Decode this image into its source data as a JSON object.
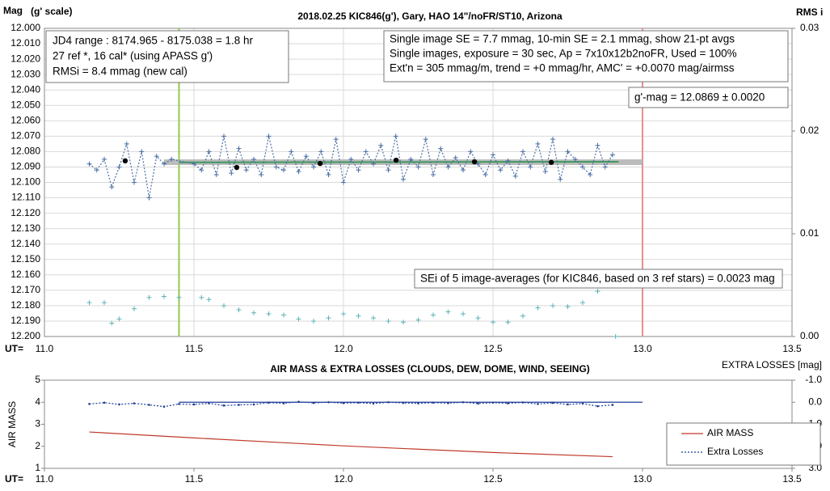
{
  "chart_data": [
    {
      "type": "scatter",
      "title": "2018.02.25  KIC846(g'),  Gary, HAO  14\"/noFR/ST10,  Arizona",
      "ylabel": "Mag",
      "ylabel_note": "(g' scale)",
      "y2label": "RMS i",
      "xlabel": "UT=",
      "xlim": [
        11.0,
        13.5
      ],
      "xticks": [
        {
          "value": 11.0,
          "label": "11.0"
        },
        {
          "value": 11.5,
          "label": "11.5"
        },
        {
          "value": 12.0,
          "label": "12.0"
        },
        {
          "value": 12.5,
          "label": "12.5"
        },
        {
          "value": 13.0,
          "label": "13.0"
        },
        {
          "value": 13.5,
          "label": "13.5"
        }
      ],
      "ylim": [
        12.2,
        12.0
      ],
      "yticks": [
        {
          "value": 12.0,
          "label": "12.000"
        },
        {
          "value": 12.01,
          "label": "12.010"
        },
        {
          "value": 12.02,
          "label": "12.020"
        },
        {
          "value": 12.03,
          "label": "12.030"
        },
        {
          "value": 12.04,
          "label": "12.040"
        },
        {
          "value": 12.05,
          "label": "12.050"
        },
        {
          "value": 12.06,
          "label": "12.060"
        },
        {
          "value": 12.07,
          "label": "12.070"
        },
        {
          "value": 12.08,
          "label": "12.080"
        },
        {
          "value": 12.09,
          "label": "12.090"
        },
        {
          "value": 12.1,
          "label": "12.100"
        },
        {
          "value": 12.11,
          "label": "12.110"
        },
        {
          "value": 12.12,
          "label": "12.120"
        },
        {
          "value": 12.13,
          "label": "12.130"
        },
        {
          "value": 12.14,
          "label": "12.140"
        },
        {
          "value": 12.15,
          "label": "12.150"
        },
        {
          "value": 12.16,
          "label": "12.160"
        },
        {
          "value": 12.17,
          "label": "12.170"
        },
        {
          "value": 12.18,
          "label": "12.180"
        },
        {
          "value": 12.19,
          "label": "12.190"
        },
        {
          "value": 12.2,
          "label": "12.200"
        }
      ],
      "y2lim": [
        0,
        0.03
      ],
      "y2ticks": [
        {
          "value": 0,
          "label": "0.00"
        },
        {
          "value": 0.01,
          "label": "0.01"
        },
        {
          "value": 0.02,
          "label": "0.02"
        },
        {
          "value": 0.03,
          "label": "0.03"
        }
      ],
      "grid": true,
      "vlines": [
        {
          "x": 11.45,
          "color": "#92c94a"
        },
        {
          "x": 13.0,
          "color": "#e89090"
        }
      ],
      "series": [
        {
          "color": "#b0b0b0",
          "line": "band",
          "x": [
            11.4,
            13.0
          ],
          "values": [
            12.0869,
            12.0869
          ]
        },
        {
          "color": "#3f9a5e",
          "line": "solid",
          "x": [
            11.45,
            12.92
          ],
          "values": [
            12.087,
            12.0866
          ]
        },
        {
          "color": "#4a6fa5",
          "marker": "+",
          "line": "dotted",
          "x": [
            11.15,
            11.175,
            11.2,
            11.225,
            11.25,
            11.275,
            11.3,
            11.325,
            11.35,
            11.375,
            11.4,
            11.425,
            11.5,
            11.525,
            11.55,
            11.575,
            11.6,
            11.625,
            11.65,
            11.675,
            11.7,
            11.725,
            11.75,
            11.775,
            11.8,
            11.825,
            11.85,
            11.875,
            11.9,
            11.925,
            11.95,
            11.975,
            12.0,
            12.025,
            12.05,
            12.075,
            12.1,
            12.125,
            12.15,
            12.175,
            12.2,
            12.225,
            12.25,
            12.275,
            12.3,
            12.325,
            12.35,
            12.375,
            12.4,
            12.425,
            12.45,
            12.475,
            12.5,
            12.525,
            12.55,
            12.575,
            12.6,
            12.625,
            12.65,
            12.675,
            12.7,
            12.725,
            12.75,
            12.775,
            12.8,
            12.825,
            12.85,
            12.875,
            12.9
          ],
          "values": [
            12.088,
            12.092,
            12.085,
            12.103,
            12.09,
            12.075,
            12.1,
            12.08,
            12.11,
            12.083,
            12.088,
            12.085,
            12.088,
            12.092,
            12.08,
            12.095,
            12.07,
            12.094,
            12.078,
            12.092,
            12.085,
            12.095,
            12.07,
            12.09,
            12.092,
            12.08,
            12.093,
            12.083,
            12.09,
            12.08,
            12.095,
            12.072,
            12.1,
            12.085,
            12.092,
            12.08,
            12.088,
            12.076,
            12.092,
            12.07,
            12.098,
            12.085,
            12.09,
            12.072,
            12.095,
            12.078,
            12.09,
            12.084,
            12.092,
            12.08,
            12.088,
            12.095,
            12.082,
            12.092,
            12.086,
            12.096,
            12.08,
            12.09,
            12.075,
            12.093,
            12.072,
            12.098,
            12.08,
            12.085,
            12.09,
            12.095,
            12.076,
            12.09,
            12.082
          ]
        },
        {
          "color": "#000000",
          "marker": "dot",
          "x": [
            11.27,
            11.643,
            11.922,
            12.176,
            12.438,
            12.695
          ],
          "values": [
            12.086,
            12.0903,
            12.0877,
            12.0856,
            12.0866,
            12.087
          ]
        },
        {
          "color": "#5fb3b3",
          "marker": "+",
          "axis": "y2",
          "x": [
            11.15,
            11.2,
            11.225,
            11.25,
            11.3,
            11.35,
            11.4,
            11.45,
            11.525,
            11.55,
            11.6,
            11.65,
            11.7,
            11.75,
            11.8,
            11.85,
            11.9,
            11.95,
            12.0,
            12.05,
            12.1,
            12.15,
            12.2,
            12.25,
            12.3,
            12.35,
            12.4,
            12.45,
            12.5,
            12.55,
            12.6,
            12.65,
            12.7,
            12.75,
            12.8,
            12.85,
            12.91
          ],
          "values": [
            0.0033,
            0.0033,
            0.0013,
            0.0017,
            0.0027,
            0.0038,
            0.0039,
            0.0038,
            0.0038,
            0.0036,
            0.003,
            0.0026,
            0.0023,
            0.0022,
            0.0021,
            0.0017,
            0.0015,
            0.0018,
            0.0022,
            0.002,
            0.0018,
            0.0015,
            0.0014,
            0.0016,
            0.0021,
            0.0024,
            0.0022,
            0.0018,
            0.0014,
            0.0014,
            0.002,
            0.0028,
            0.003,
            0.0029,
            0.0033,
            0.0044,
            0.0
          ]
        }
      ],
      "annotations": [
        [
          "JD4 range : 8174.965 - 8175.038 = 1.8  hr",
          "27 ref *, 16 cal* (using APASS g')",
          "RMSi = 8.4 mmag (new cal)"
        ],
        [
          "Single image SE = 7.7 mmag, 10-min SE = 2.1 mmag, show  21-pt avgs",
          "Single images, exposure = 30 sec, Ap = 7x10x12b2noFR,  Used = 100%",
          "Ext'n = 305 mmag/m, trend =  +0 mmag/hr, AMC' = +0.0070 mag/airmss"
        ],
        [
          "g'-mag = 12.0869 ± 0.0020"
        ],
        [
          "SEi of 5 image-averages (for KIC846, based on 3 ref stars) = 0.0023  mag"
        ]
      ]
    },
    {
      "type": "line",
      "title": "AIR MASS & EXTRA LOSSES (CLOUDS, DEW, DOME, WIND, SEEING)",
      "ylabel": "AIR MASS",
      "y2label": "EXTRA LOSSES [mag]",
      "xlabel": "UT=",
      "xlim": [
        11.0,
        13.5
      ],
      "xticks": [
        {
          "value": 11.0,
          "label": "11.0"
        },
        {
          "value": 11.5,
          "label": "11.5"
        },
        {
          "value": 12.0,
          "label": "12.0"
        },
        {
          "value": 12.5,
          "label": "12.5"
        },
        {
          "value": 13.0,
          "label": "13.0"
        },
        {
          "value": 13.5,
          "label": "13.5"
        }
      ],
      "ylim": [
        1,
        5
      ],
      "yticks": [
        1,
        2,
        3,
        4,
        5
      ],
      "y2lim": [
        3.0,
        -1.0
      ],
      "y2ticks": [
        {
          "value": -1.0,
          "label": "-1.0"
        },
        {
          "value": 0.0,
          "label": "0.0"
        },
        {
          "value": 1.0,
          "label": "1.0"
        },
        {
          "value": 2.0,
          "label": "2.0"
        },
        {
          "value": 3.0,
          "label": "3.0"
        }
      ],
      "grid": false,
      "legend": "lower right",
      "series": [
        {
          "color": "#1f3c99",
          "line": "solid",
          "axis": "y2",
          "x": [
            11.45,
            13.0
          ],
          "values": [
            0.0,
            0.0
          ]
        },
        {
          "name": "AIR MASS",
          "color": "#c0392b",
          "line": "solid",
          "x": [
            11.15,
            11.5,
            12.0,
            12.5,
            12.9
          ],
          "values": [
            2.65,
            2.38,
            2.02,
            1.72,
            1.53
          ]
        },
        {
          "name": "Extra Losses",
          "color": "#1f3c99",
          "line": "dotted",
          "marker": "dot",
          "axis": "y2",
          "x": [
            11.15,
            11.2,
            11.25,
            11.3,
            11.35,
            11.4,
            11.45,
            11.5,
            11.55,
            11.6,
            11.65,
            11.7,
            11.75,
            11.8,
            11.85,
            11.9,
            11.95,
            12.0,
            12.05,
            12.1,
            12.15,
            12.2,
            12.25,
            12.3,
            12.35,
            12.4,
            12.45,
            12.5,
            12.55,
            12.6,
            12.65,
            12.7,
            12.75,
            12.8,
            12.85,
            12.9
          ],
          "values": [
            0.08,
            0.02,
            0.1,
            0.05,
            0.12,
            0.2,
            0.08,
            0.1,
            0.05,
            0.15,
            0.12,
            0.1,
            0.02,
            0.05,
            -0.02,
            0.03,
            0.0,
            0.04,
            0.02,
            0.06,
            0.0,
            0.03,
            0.05,
            0.02,
            0.04,
            0.0,
            0.06,
            0.02,
            0.05,
            0.01,
            0.08,
            0.03,
            0.1,
            0.06,
            0.18,
            0.12
          ]
        }
      ]
    }
  ]
}
